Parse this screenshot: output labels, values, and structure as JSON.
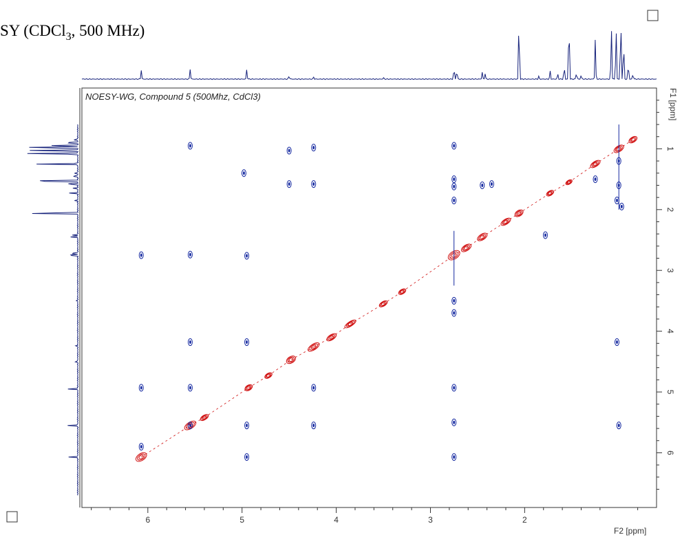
{
  "heading": {
    "text_before": "SY (CDCl",
    "subscript": "3",
    "text_after": ", 500 MHz)"
  },
  "chart_data": {
    "type": "heatmap",
    "subtype": "2D NMR NOESY contour plot with 1D projections",
    "title": "NOESY-WG, Compound 5 (500Mhz, CdCl3)",
    "xlabel": "F2 [ppm]",
    "ylabel": "F1 [ppm]",
    "x_range": [
      6.7,
      0.6
    ],
    "y_range": [
      0.0,
      6.9
    ],
    "x_reversed": true,
    "y_reversed": true,
    "x_ticks": [
      6,
      5,
      4,
      3,
      2
    ],
    "y_ticks": [
      1,
      2,
      3,
      4,
      5,
      6
    ],
    "x_tick_labels": [
      "6",
      "5",
      "4",
      "3",
      "2"
    ],
    "y_tick_labels": [
      "1",
      "2",
      "3",
      "4",
      "5",
      "6"
    ],
    "legend_markers": [
      "open-square-top-right",
      "open-square-bottom-left"
    ],
    "series": [
      {
        "name": "",
        "sign": "positive",
        "color": "#d01010",
        "kind": "diagonal"
      },
      {
        "name": "",
        "sign": "negative",
        "color": "#1428a0",
        "kind": "cross-peaks"
      }
    ],
    "diagonal_peaks": [
      {
        "x": 6.07,
        "y": 6.07,
        "w": 0.11,
        "h": 0.09
      },
      {
        "x": 5.55,
        "y": 5.55,
        "w": 0.12,
        "h": 0.08
      },
      {
        "x": 5.4,
        "y": 5.42,
        "w": 0.08,
        "h": 0.05
      },
      {
        "x": 4.93,
        "y": 4.93,
        "w": 0.07,
        "h": 0.06
      },
      {
        "x": 4.72,
        "y": 4.73,
        "w": 0.07,
        "h": 0.05
      },
      {
        "x": 4.48,
        "y": 4.47,
        "w": 0.09,
        "h": 0.08
      },
      {
        "x": 4.24,
        "y": 4.26,
        "w": 0.12,
        "h": 0.07
      },
      {
        "x": 4.05,
        "y": 4.1,
        "w": 0.1,
        "h": 0.06
      },
      {
        "x": 3.85,
        "y": 3.88,
        "w": 0.12,
        "h": 0.05
      },
      {
        "x": 3.5,
        "y": 3.55,
        "w": 0.08,
        "h": 0.05
      },
      {
        "x": 3.3,
        "y": 3.35,
        "w": 0.07,
        "h": 0.05
      },
      {
        "x": 2.75,
        "y": 2.75,
        "w": 0.12,
        "h": 0.1
      },
      {
        "x": 2.62,
        "y": 2.63,
        "w": 0.1,
        "h": 0.07
      },
      {
        "x": 2.45,
        "y": 2.45,
        "w": 0.1,
        "h": 0.07
      },
      {
        "x": 2.2,
        "y": 2.2,
        "w": 0.1,
        "h": 0.06
      },
      {
        "x": 2.06,
        "y": 2.06,
        "w": 0.08,
        "h": 0.07
      },
      {
        "x": 1.73,
        "y": 1.73,
        "w": 0.07,
        "h": 0.05
      },
      {
        "x": 1.53,
        "y": 1.55,
        "w": 0.06,
        "h": 0.04
      },
      {
        "x": 1.25,
        "y": 1.25,
        "w": 0.1,
        "h": 0.06
      },
      {
        "x": 1.0,
        "y": 1.0,
        "w": 0.1,
        "h": 0.07
      },
      {
        "x": 0.85,
        "y": 0.85,
        "w": 0.08,
        "h": 0.06
      }
    ],
    "cross_peaks": [
      {
        "x": 5.55,
        "y": 0.95
      },
      {
        "x": 4.5,
        "y": 1.03
      },
      {
        "x": 4.24,
        "y": 0.98
      },
      {
        "x": 4.98,
        "y": 1.4
      },
      {
        "x": 4.5,
        "y": 1.58
      },
      {
        "x": 4.24,
        "y": 1.58
      },
      {
        "x": 6.07,
        "y": 2.75
      },
      {
        "x": 5.55,
        "y": 2.74
      },
      {
        "x": 4.95,
        "y": 2.76
      },
      {
        "x": 5.55,
        "y": 4.18
      },
      {
        "x": 4.95,
        "y": 4.18
      },
      {
        "x": 6.07,
        "y": 4.93
      },
      {
        "x": 5.55,
        "y": 4.93
      },
      {
        "x": 4.24,
        "y": 4.93
      },
      {
        "x": 5.55,
        "y": 5.55
      },
      {
        "x": 4.95,
        "y": 5.55
      },
      {
        "x": 4.24,
        "y": 5.55
      },
      {
        "x": 6.07,
        "y": 5.9
      },
      {
        "x": 4.95,
        "y": 6.07
      },
      {
        "x": 2.75,
        "y": 0.95
      },
      {
        "x": 2.75,
        "y": 1.5
      },
      {
        "x": 2.75,
        "y": 1.62
      },
      {
        "x": 2.75,
        "y": 1.85
      },
      {
        "x": 2.75,
        "y": 4.93
      },
      {
        "x": 2.75,
        "y": 5.5
      },
      {
        "x": 2.75,
        "y": 6.07
      },
      {
        "x": 2.75,
        "y": 3.5
      },
      {
        "x": 2.75,
        "y": 3.7
      },
      {
        "x": 2.45,
        "y": 1.6
      },
      {
        "x": 2.35,
        "y": 1.58
      },
      {
        "x": 1.02,
        "y": 4.18
      },
      {
        "x": 1.0,
        "y": 5.55
      },
      {
        "x": 1.0,
        "y": 1.6
      },
      {
        "x": 1.02,
        "y": 1.85
      },
      {
        "x": 1.25,
        "y": 1.5
      },
      {
        "x": 1.0,
        "y": 1.2
      },
      {
        "x": 0.97,
        "y": 1.95
      },
      {
        "x": 1.78,
        "y": 2.42
      }
    ],
    "projection_peaks": [
      {
        "ppm": 6.07,
        "h": 0.13
      },
      {
        "ppm": 5.55,
        "h": 0.15
      },
      {
        "ppm": 4.95,
        "h": 0.14
      },
      {
        "ppm": 4.5,
        "h": 0.05
      },
      {
        "ppm": 4.24,
        "h": 0.03
      },
      {
        "ppm": 3.5,
        "h": 0.02
      },
      {
        "ppm": 2.75,
        "h": 0.18
      },
      {
        "ppm": 2.72,
        "h": 0.14
      },
      {
        "ppm": 2.45,
        "h": 0.1
      },
      {
        "ppm": 2.42,
        "h": 0.08
      },
      {
        "ppm": 2.06,
        "h": 0.98
      },
      {
        "ppm": 1.85,
        "h": 0.04
      },
      {
        "ppm": 1.73,
        "h": 0.12
      },
      {
        "ppm": 1.65,
        "h": 0.08
      },
      {
        "ppm": 1.58,
        "h": 0.2
      },
      {
        "ppm": 1.53,
        "h": 1.0
      },
      {
        "ppm": 1.45,
        "h": 0.1
      },
      {
        "ppm": 1.4,
        "h": 0.06
      },
      {
        "ppm": 1.25,
        "h": 0.58
      },
      {
        "ppm": 1.08,
        "h": 0.8
      },
      {
        "ppm": 1.03,
        "h": 0.85
      },
      {
        "ppm": 0.98,
        "h": 1.0
      },
      {
        "ppm": 0.95,
        "h": 0.6
      },
      {
        "ppm": 0.9,
        "h": 0.25
      },
      {
        "ppm": 0.85,
        "h": 0.08
      }
    ],
    "colors": {
      "positive": "#d01010",
      "negative": "#1428a0",
      "projection": "#14207a",
      "axis": "#333333"
    }
  }
}
